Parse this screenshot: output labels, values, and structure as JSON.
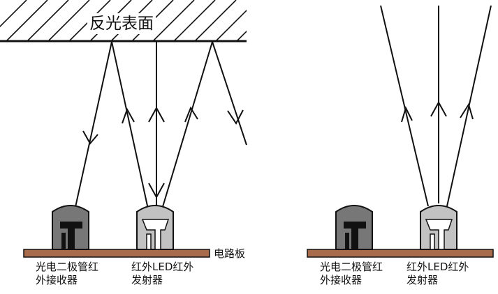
{
  "surface_label": "反光表面",
  "pcb_label": "电路板",
  "left": {
    "receiver_label": [
      "光电二极管红",
      "外接收器"
    ],
    "emitter_label": [
      "红外LED红外",
      "发射器"
    ]
  },
  "right": {
    "receiver_label": [
      "光电二极管红",
      "外接收器"
    ],
    "emitter_label": [
      "红外LED红外",
      "发射器"
    ]
  },
  "colors": {
    "pcb": "#a86b4b",
    "receiver_dome": "#777777",
    "emitter_dome": "#c2c2c2",
    "line": "#111111"
  }
}
